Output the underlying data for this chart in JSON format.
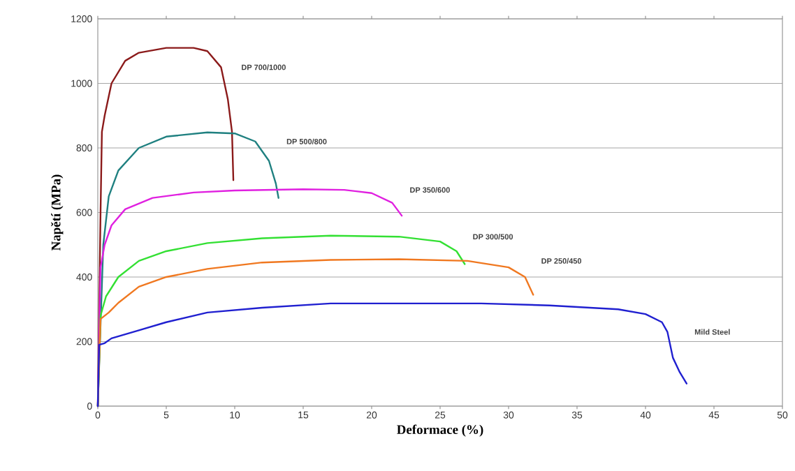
{
  "chart_data": {
    "type": "line",
    "xlabel": "Deformace (%)",
    "ylabel": "Napětí (MPa)",
    "xlim": [
      0,
      50
    ],
    "ylim": [
      0,
      1200
    ],
    "xticks": [
      0,
      5,
      10,
      15,
      20,
      25,
      30,
      35,
      40,
      45,
      50
    ],
    "yticks": [
      0,
      200,
      400,
      600,
      800,
      1000,
      1200
    ],
    "grid": "y",
    "legend": false,
    "marker": "none",
    "line_style": "solid",
    "series": [
      {
        "name": "DP 700/1000",
        "color": "#8b1a1a",
        "x": [
          0,
          0.2,
          0.3,
          0.5,
          1,
          2,
          3,
          5,
          7,
          8,
          9,
          9.5,
          9.8,
          9.9
        ],
        "values": [
          0,
          600,
          850,
          900,
          1000,
          1070,
          1095,
          1110,
          1110,
          1100,
          1050,
          950,
          850,
          700
        ]
      },
      {
        "name": "DP 500/800",
        "color": "#1f8080",
        "x": [
          0,
          0.4,
          0.8,
          1.5,
          3,
          5,
          8,
          10,
          11.5,
          12.5,
          13,
          13.2
        ],
        "values": [
          0,
          500,
          650,
          730,
          800,
          835,
          848,
          845,
          820,
          760,
          690,
          645
        ]
      },
      {
        "name": "DP 350/600",
        "color": "#e020e0",
        "x": [
          0,
          0.2,
          0.5,
          1,
          2,
          4,
          7,
          10,
          15,
          18,
          20,
          21.5,
          22.2
        ],
        "values": [
          0,
          430,
          500,
          560,
          610,
          645,
          662,
          668,
          672,
          670,
          660,
          630,
          590
        ]
      },
      {
        "name": "DP 300/500",
        "color": "#33e033",
        "x": [
          0,
          0.2,
          0.6,
          1.5,
          3,
          5,
          8,
          12,
          17,
          22,
          25,
          26.2,
          26.8
        ],
        "values": [
          0,
          280,
          340,
          400,
          450,
          480,
          505,
          520,
          528,
          525,
          510,
          480,
          440
        ]
      },
      {
        "name": "DP 250/450",
        "color": "#f07820",
        "x": [
          0,
          0.2,
          0.8,
          1.5,
          3,
          5,
          8,
          12,
          17,
          22,
          27,
          30,
          31.2,
          31.8
        ],
        "values": [
          0,
          270,
          290,
          320,
          370,
          400,
          425,
          445,
          453,
          455,
          450,
          430,
          400,
          345
        ]
      },
      {
        "name": "Mild Steel",
        "color": "#2020d0",
        "x": [
          0,
          0.1,
          0.5,
          1,
          3,
          5,
          8,
          12,
          17,
          22,
          28,
          33,
          38,
          40,
          41.2,
          41.6,
          42,
          42.5,
          43
        ],
        "values": [
          0,
          190,
          195,
          210,
          235,
          260,
          290,
          305,
          318,
          318,
          318,
          312,
          300,
          285,
          260,
          230,
          150,
          105,
          70
        ]
      }
    ]
  }
}
